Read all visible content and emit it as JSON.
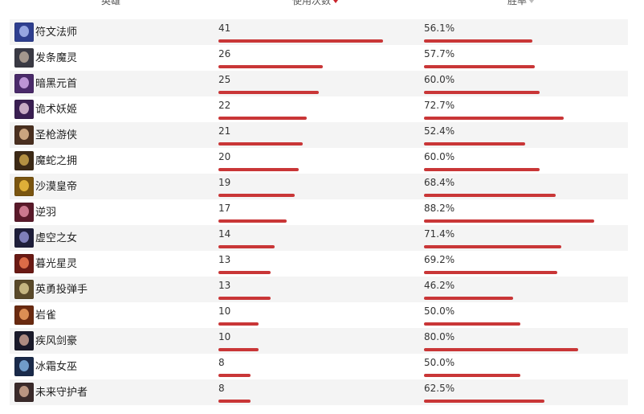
{
  "header": {
    "hero": "英雄",
    "uses": "使用次数",
    "winrate": "胜率"
  },
  "scale": {
    "uses_max": 48,
    "win_max_percent": 100
  },
  "rows": [
    {
      "name": "符文法师",
      "uses": "41",
      "win": "56.1%",
      "uses_num": 41,
      "win_num": 56.1,
      "colors": [
        "#2f3f8f",
        "#a9b8f0"
      ]
    },
    {
      "name": "发条魔灵",
      "uses": "26",
      "win": "57.7%",
      "uses_num": 26,
      "win_num": 57.7,
      "colors": [
        "#3a3a44",
        "#b7a89a"
      ]
    },
    {
      "name": "暗黑元首",
      "uses": "25",
      "win": "60.0%",
      "uses_num": 25,
      "win_num": 60.0,
      "colors": [
        "#4a2a6a",
        "#d0a8e8"
      ]
    },
    {
      "name": "诡术妖姬",
      "uses": "22",
      "win": "72.7%",
      "uses_num": 22,
      "win_num": 72.7,
      "colors": [
        "#3a1f52",
        "#e0c4d8"
      ]
    },
    {
      "name": "圣枪游侠",
      "uses": "21",
      "win": "52.4%",
      "uses_num": 21,
      "win_num": 52.4,
      "colors": [
        "#4a3020",
        "#e0b890"
      ]
    },
    {
      "name": "魔蛇之拥",
      "uses": "20",
      "win": "60.0%",
      "uses_num": 20,
      "win_num": 60.0,
      "colors": [
        "#3d2a16",
        "#c9a24a"
      ]
    },
    {
      "name": "沙漠皇帝",
      "uses": "19",
      "win": "68.4%",
      "uses_num": 19,
      "win_num": 68.4,
      "colors": [
        "#7a5510",
        "#f0c040"
      ]
    },
    {
      "name": "逆羽",
      "uses": "17",
      "win": "88.2%",
      "uses_num": 17,
      "win_num": 88.2,
      "colors": [
        "#5a1a2a",
        "#e08aa0"
      ]
    },
    {
      "name": "虚空之女",
      "uses": "14",
      "win": "71.4%",
      "uses_num": 14,
      "win_num": 71.4,
      "colors": [
        "#1e1e3a",
        "#9090d0"
      ]
    },
    {
      "name": "暮光星灵",
      "uses": "13",
      "win": "69.2%",
      "uses_num": 13,
      "win_num": 69.2,
      "colors": [
        "#6a1a14",
        "#f07a50"
      ]
    },
    {
      "name": "英勇投弹手",
      "uses": "13",
      "win": "46.2%",
      "uses_num": 13,
      "win_num": 46.2,
      "colors": [
        "#5a4a2a",
        "#d8c890"
      ]
    },
    {
      "name": "岩雀",
      "uses": "10",
      "win": "50.0%",
      "uses_num": 10,
      "win_num": 50.0,
      "colors": [
        "#6a2a10",
        "#f0a060"
      ]
    },
    {
      "name": "疾风剑豪",
      "uses": "10",
      "win": "80.0%",
      "uses_num": 10,
      "win_num": 80.0,
      "colors": [
        "#1a1a2a",
        "#c8a090"
      ]
    },
    {
      "name": "冰霜女巫",
      "uses": "8",
      "win": "50.0%",
      "uses_num": 8,
      "win_num": 50.0,
      "colors": [
        "#1a2a4a",
        "#80b0e0"
      ]
    },
    {
      "name": "未来守护者",
      "uses": "8",
      "win": "62.5%",
      "uses_num": 8,
      "win_num": 62.5,
      "colors": [
        "#3a2a2a",
        "#d0a890"
      ]
    }
  ]
}
